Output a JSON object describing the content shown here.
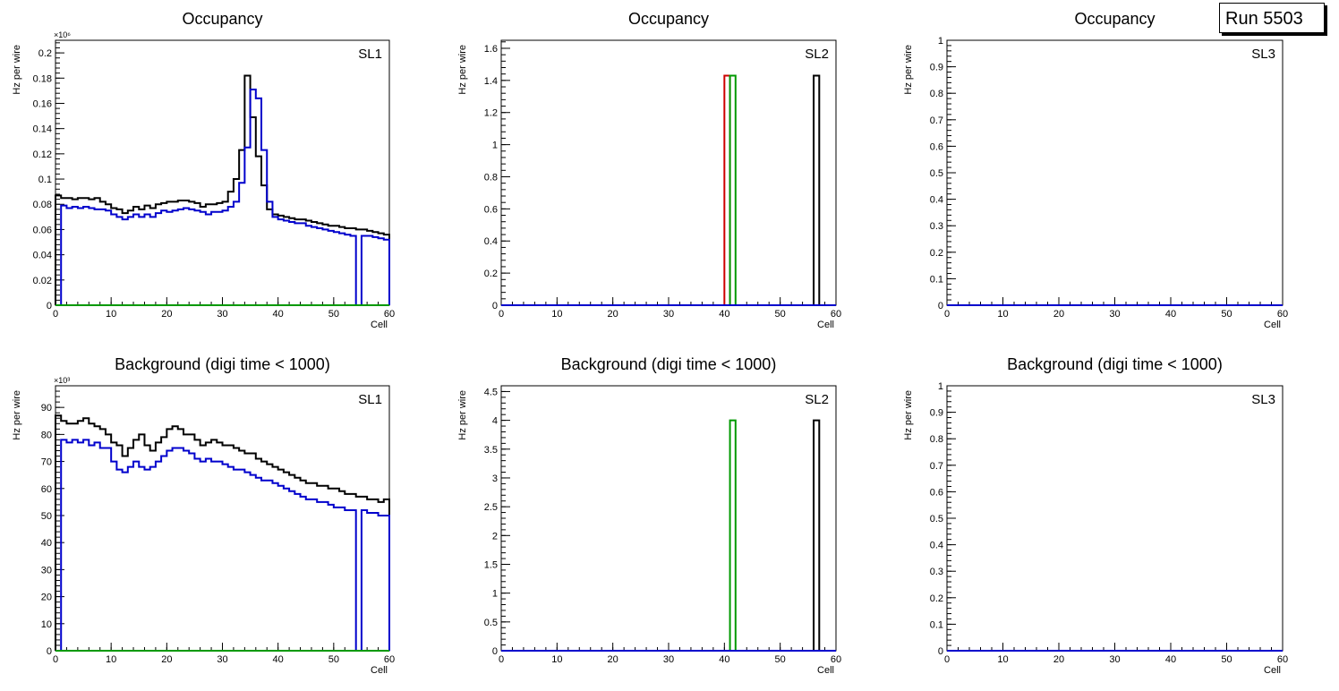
{
  "run_label": "Run 5503",
  "chart_data": [
    {
      "type": "histogram",
      "title": "Occupancy",
      "sl_label": "SL1",
      "xlabel": "Cell",
      "ylabel": "Hz per wire",
      "multiplier": "×10⁶",
      "xlim": [
        0,
        60
      ],
      "ylim": [
        0,
        0.21
      ],
      "yticks": [
        0,
        0.02,
        0.04,
        0.06,
        0.08,
        0.1,
        0.12,
        0.14,
        0.16,
        0.18,
        0.2
      ],
      "yticklabels": [
        "0",
        "0.02",
        "0.04",
        "0.06",
        "0.08",
        "0.1",
        "0.12",
        "0.14",
        "0.16",
        "0.18",
        "0.2"
      ],
      "xticks": [
        0,
        10,
        20,
        30,
        40,
        50,
        60
      ],
      "series": [
        {
          "name": "black",
          "color": "#000000",
          "values": [
            0.087,
            0.085,
            0.085,
            0.084,
            0.085,
            0.085,
            0.084,
            0.085,
            0.082,
            0.08,
            0.077,
            0.076,
            0.073,
            0.075,
            0.078,
            0.076,
            0.079,
            0.077,
            0.08,
            0.081,
            0.082,
            0.082,
            0.083,
            0.083,
            0.082,
            0.081,
            0.078,
            0.08,
            0.08,
            0.081,
            0.082,
            0.09,
            0.1,
            0.123,
            0.182,
            0.149,
            0.118,
            0.095,
            0.076,
            0.072,
            0.071,
            0.07,
            0.069,
            0.068,
            0.068,
            0.067,
            0.066,
            0.065,
            0.064,
            0.063,
            0.063,
            0.062,
            0.061,
            0.061,
            0.06,
            0.06,
            0.059,
            0.058,
            0.057,
            0.056
          ]
        },
        {
          "name": "blue",
          "color": "#0000cc",
          "values": [
            0,
            0.079,
            0.077,
            0.078,
            0.077,
            0.078,
            0.077,
            0.076,
            0.076,
            0.075,
            0.072,
            0.07,
            0.068,
            0.07,
            0.072,
            0.07,
            0.072,
            0.07,
            0.073,
            0.075,
            0.074,
            0.075,
            0.076,
            0.077,
            0.076,
            0.075,
            0.074,
            0.072,
            0.074,
            0.074,
            0.075,
            0.078,
            0.082,
            0.097,
            0.125,
            0.171,
            0.164,
            0.123,
            0.082,
            0.07,
            0.068,
            0.067,
            0.066,
            0.065,
            0.065,
            0.063,
            0.062,
            0.061,
            0.06,
            0.059,
            0.058,
            0.057,
            0.056,
            0.055,
            0,
            0.055,
            0.055,
            0.054,
            0.053,
            0.052
          ]
        },
        {
          "name": "green",
          "color": "#009900",
          "values": [
            0,
            0,
            0,
            0,
            0,
            0,
            0,
            0,
            0,
            0,
            0,
            0,
            0,
            0,
            0,
            0,
            0,
            0,
            0,
            0,
            0,
            0,
            0,
            0,
            0,
            0,
            0,
            0,
            0,
            0,
            0,
            0,
            0,
            0,
            0,
            0,
            0,
            0,
            0,
            0,
            0,
            0,
            0,
            0,
            0,
            0,
            0,
            0,
            0,
            0,
            0,
            0,
            0,
            0,
            0,
            0,
            0,
            0,
            0,
            0
          ]
        }
      ]
    },
    {
      "type": "histogram",
      "title": "Occupancy",
      "sl_label": "SL2",
      "xlabel": "Cell",
      "ylabel": "Hz per wire",
      "multiplier": "",
      "xlim": [
        0,
        60
      ],
      "ylim": [
        0,
        1.65
      ],
      "yticks": [
        0,
        0.2,
        0.4,
        0.6,
        0.8,
        1,
        1.2,
        1.4,
        1.6
      ],
      "yticklabels": [
        "0",
        "0.2",
        "0.4",
        "0.6",
        "0.8",
        "1",
        "1.2",
        "1.4",
        "1.6"
      ],
      "xticks": [
        0,
        10,
        20,
        30,
        40,
        50,
        60
      ],
      "series": [
        {
          "name": "red",
          "color": "#cc0000",
          "bars": [
            {
              "cell": 40,
              "value": 1.43
            }
          ]
        },
        {
          "name": "green",
          "color": "#009900",
          "bars": [
            {
              "cell": 41,
              "value": 1.43
            }
          ]
        },
        {
          "name": "black",
          "color": "#000000",
          "bars": [
            {
              "cell": 56,
              "value": 1.43
            }
          ]
        },
        {
          "name": "blue",
          "color": "#0000cc",
          "bars": []
        }
      ]
    },
    {
      "type": "histogram",
      "title": "Occupancy",
      "sl_label": "SL3",
      "xlabel": "Cell",
      "ylabel": "Hz per wire",
      "multiplier": "",
      "xlim": [
        0,
        60
      ],
      "ylim": [
        0,
        1
      ],
      "yticks": [
        0,
        0.1,
        0.2,
        0.3,
        0.4,
        0.5,
        0.6,
        0.7,
        0.8,
        0.9,
        1
      ],
      "yticklabels": [
        "0",
        "0.1",
        "0.2",
        "0.3",
        "0.4",
        "0.5",
        "0.6",
        "0.7",
        "0.8",
        "0.9",
        "1"
      ],
      "xticks": [
        0,
        10,
        20,
        30,
        40,
        50,
        60
      ],
      "series": [
        {
          "name": "blue",
          "color": "#0000cc",
          "bars": []
        }
      ]
    },
    {
      "type": "histogram",
      "title": "Background (digi time < 1000)",
      "sl_label": "SL1",
      "xlabel": "Cell",
      "ylabel": "Hz per wire",
      "multiplier": "×10³",
      "xlim": [
        0,
        60
      ],
      "ylim": [
        0,
        98
      ],
      "yticks": [
        0,
        10,
        20,
        30,
        40,
        50,
        60,
        70,
        80,
        90
      ],
      "yticklabels": [
        "0",
        "10",
        "20",
        "30",
        "40",
        "50",
        "60",
        "70",
        "80",
        "90"
      ],
      "xticks": [
        0,
        10,
        20,
        30,
        40,
        50,
        60
      ],
      "series": [
        {
          "name": "black",
          "color": "#000000",
          "values": [
            87,
            85,
            84,
            84,
            85,
            86,
            84,
            83,
            82,
            80,
            77,
            76,
            72,
            75,
            78,
            80,
            76,
            74,
            77,
            79,
            82,
            83,
            82,
            80,
            80,
            78,
            76,
            77,
            78,
            77,
            76,
            76,
            75,
            74,
            73,
            73,
            71,
            70,
            69,
            68,
            67,
            66,
            65,
            64,
            63,
            62,
            62,
            61,
            61,
            60,
            60,
            59,
            58,
            58,
            57,
            57,
            56,
            56,
            55,
            56
          ]
        },
        {
          "name": "blue",
          "color": "#0000cc",
          "values": [
            0,
            78,
            77,
            78,
            77,
            78,
            76,
            77,
            75,
            75,
            70,
            67,
            66,
            68,
            70,
            68,
            67,
            68,
            70,
            72,
            74,
            75,
            75,
            74,
            73,
            71,
            70,
            71,
            70,
            70,
            69,
            68,
            67,
            67,
            66,
            65,
            64,
            63,
            63,
            62,
            61,
            60,
            59,
            58,
            57,
            56,
            56,
            55,
            55,
            54,
            53,
            53,
            52,
            52,
            0,
            52,
            51,
            51,
            50,
            50
          ]
        },
        {
          "name": "green",
          "color": "#009900",
          "values": [
            0,
            0,
            0,
            0,
            0,
            0,
            0,
            0,
            0,
            0,
            0,
            0,
            0,
            0,
            0,
            0,
            0,
            0,
            0,
            0,
            0,
            0,
            0,
            0,
            0,
            0,
            0,
            0,
            0,
            0,
            0,
            0,
            0,
            0,
            0,
            0,
            0,
            0,
            0,
            0,
            0,
            0,
            0,
            0,
            0,
            0,
            0,
            0,
            0,
            0,
            0,
            0,
            0,
            0,
            0,
            0,
            0,
            0,
            0,
            0
          ]
        }
      ]
    },
    {
      "type": "histogram",
      "title": "Background (digi time < 1000)",
      "sl_label": "SL2",
      "xlabel": "Cell",
      "ylabel": "Hz per wire",
      "multiplier": "",
      "xlim": [
        0,
        60
      ],
      "ylim": [
        0,
        4.6
      ],
      "yticks": [
        0,
        0.5,
        1,
        1.5,
        2,
        2.5,
        3,
        3.5,
        4,
        4.5
      ],
      "yticklabels": [
        "0",
        "0.5",
        "1",
        "1.5",
        "2",
        "2.5",
        "3",
        "3.5",
        "4",
        "4.5"
      ],
      "xticks": [
        0,
        10,
        20,
        30,
        40,
        50,
        60
      ],
      "series": [
        {
          "name": "green",
          "color": "#009900",
          "bars": [
            {
              "cell": 41,
              "value": 4
            }
          ]
        },
        {
          "name": "black",
          "color": "#000000",
          "bars": [
            {
              "cell": 56,
              "value": 4
            }
          ]
        },
        {
          "name": "blue",
          "color": "#0000cc",
          "bars": []
        }
      ]
    },
    {
      "type": "histogram",
      "title": "Background (digi time < 1000)",
      "sl_label": "SL3",
      "xlabel": "Cell",
      "ylabel": "Hz per wire",
      "multiplier": "",
      "xlim": [
        0,
        60
      ],
      "ylim": [
        0,
        1
      ],
      "yticks": [
        0,
        0.1,
        0.2,
        0.3,
        0.4,
        0.5,
        0.6,
        0.7,
        0.8,
        0.9,
        1
      ],
      "yticklabels": [
        "0",
        "0.1",
        "0.2",
        "0.3",
        "0.4",
        "0.5",
        "0.6",
        "0.7",
        "0.8",
        "0.9",
        "1"
      ],
      "xticks": [
        0,
        10,
        20,
        30,
        40,
        50,
        60
      ],
      "series": [
        {
          "name": "blue",
          "color": "#0000cc",
          "bars": []
        }
      ]
    }
  ]
}
